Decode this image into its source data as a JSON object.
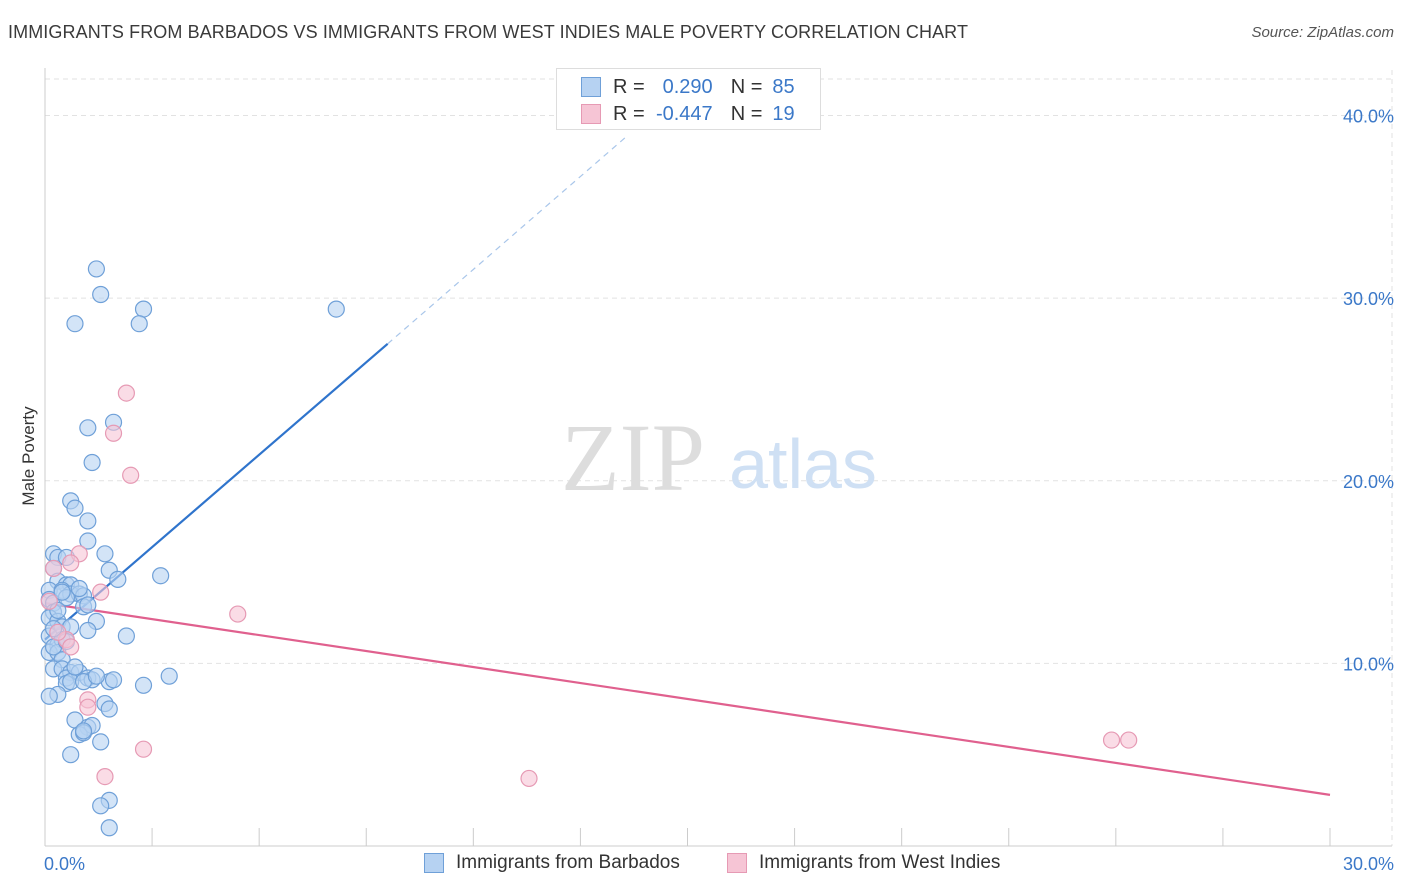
{
  "title": "IMMIGRANTS FROM BARBADOS VS IMMIGRANTS FROM WEST INDIES MALE POVERTY CORRELATION CHART",
  "source": "Source: ZipAtlas.com",
  "watermark": {
    "zip": "ZIP",
    "atlas": "atlas"
  },
  "colors": {
    "blue_fill": "#b6d2f2",
    "blue_stroke": "#6fa0d8",
    "blue_line": "#2f74cc",
    "pink_fill": "#f6c5d5",
    "pink_stroke": "#e69ab4",
    "pink_line": "#e0608e",
    "axis_text": "#3b78c8",
    "grid": "#e2e2e2"
  },
  "legend": {
    "rows": [
      {
        "r_label": "R =",
        "r_value": "0.290",
        "n_label": "N =",
        "n_value": "85"
      },
      {
        "r_label": "R =",
        "r_value": "-0.447",
        "n_label": "N =",
        "n_value": "19"
      }
    ]
  },
  "bottom_legend": {
    "series1": "Immigrants from Barbados",
    "series2": "Immigrants from West Indies"
  },
  "chart_data": {
    "type": "scatter",
    "title": "IMMIGRANTS FROM BARBADOS VS IMMIGRANTS FROM WEST INDIES MALE POVERTY CORRELATION CHART",
    "xlabel": "",
    "ylabel": "Male Poverty",
    "xlim": [
      0,
      30
    ],
    "ylim": [
      0,
      42
    ],
    "x_tick_labels": [
      {
        "value": 0,
        "label": "0.0%"
      },
      {
        "value": 30,
        "label": "30.0%"
      }
    ],
    "y_tick_labels": [
      {
        "value": 10,
        "label": "10.0%"
      },
      {
        "value": 20,
        "label": "20.0%"
      },
      {
        "value": 30,
        "label": "30.0%"
      },
      {
        "value": 40,
        "label": "40.0%"
      }
    ],
    "y_gridlines": [
      10,
      20,
      30,
      40
    ],
    "series": [
      {
        "name": "Immigrants from Barbados",
        "color": "blue",
        "points": [
          [
            1.2,
            31.6
          ],
          [
            1.3,
            30.2
          ],
          [
            2.3,
            29.4
          ],
          [
            2.2,
            28.6
          ],
          [
            0.7,
            28.6
          ],
          [
            6.8,
            29.4
          ],
          [
            1.6,
            23.2
          ],
          [
            1.0,
            22.9
          ],
          [
            1.1,
            21.0
          ],
          [
            0.6,
            18.9
          ],
          [
            0.7,
            18.5
          ],
          [
            1.0,
            17.8
          ],
          [
            1.0,
            16.7
          ],
          [
            0.2,
            16.0
          ],
          [
            0.3,
            15.8
          ],
          [
            0.5,
            15.8
          ],
          [
            1.4,
            16.0
          ],
          [
            1.5,
            15.1
          ],
          [
            0.2,
            15.2
          ],
          [
            0.3,
            14.5
          ],
          [
            0.5,
            14.3
          ],
          [
            0.6,
            14.3
          ],
          [
            1.7,
            14.6
          ],
          [
            2.7,
            14.8
          ],
          [
            0.1,
            14.0
          ],
          [
            0.4,
            14.0
          ],
          [
            0.6,
            13.8
          ],
          [
            0.8,
            13.8
          ],
          [
            0.9,
            13.7
          ],
          [
            0.1,
            13.5
          ],
          [
            0.2,
            13.3
          ],
          [
            0.5,
            13.6
          ],
          [
            0.9,
            13.1
          ],
          [
            0.2,
            12.8
          ],
          [
            0.1,
            12.5
          ],
          [
            0.3,
            12.3
          ],
          [
            0.4,
            12.0
          ],
          [
            0.6,
            12.0
          ],
          [
            1.2,
            12.3
          ],
          [
            1.0,
            11.8
          ],
          [
            0.1,
            11.5
          ],
          [
            0.3,
            11.0
          ],
          [
            0.4,
            11.3
          ],
          [
            1.9,
            11.5
          ],
          [
            0.1,
            10.6
          ],
          [
            0.3,
            10.6
          ],
          [
            0.4,
            10.2
          ],
          [
            0.2,
            9.7
          ],
          [
            0.4,
            9.7
          ],
          [
            0.6,
            9.5
          ],
          [
            0.5,
            9.2
          ],
          [
            0.8,
            9.5
          ],
          [
            1.0,
            9.2
          ],
          [
            1.1,
            9.1
          ],
          [
            0.5,
            8.9
          ],
          [
            0.6,
            9.0
          ],
          [
            0.9,
            9.0
          ],
          [
            1.5,
            9.0
          ],
          [
            1.6,
            9.1
          ],
          [
            2.9,
            9.3
          ],
          [
            0.3,
            8.3
          ],
          [
            0.1,
            8.2
          ],
          [
            2.3,
            8.8
          ],
          [
            1.4,
            7.8
          ],
          [
            1.5,
            7.5
          ],
          [
            0.7,
            6.9
          ],
          [
            1.0,
            6.5
          ],
          [
            1.1,
            6.6
          ],
          [
            0.8,
            6.1
          ],
          [
            0.9,
            6.2
          ],
          [
            1.3,
            5.7
          ],
          [
            0.6,
            5.0
          ],
          [
            1.5,
            2.5
          ],
          [
            1.3,
            2.2
          ],
          [
            1.5,
            1.0
          ],
          [
            0.7,
            9.8
          ],
          [
            0.3,
            12.9
          ],
          [
            0.2,
            11.9
          ],
          [
            1.0,
            13.2
          ],
          [
            0.8,
            14.1
          ],
          [
            0.4,
            13.9
          ],
          [
            0.2,
            10.9
          ],
          [
            0.5,
            11.2
          ],
          [
            1.2,
            9.3
          ],
          [
            0.9,
            6.3
          ]
        ]
      },
      {
        "name": "Immigrants from West Indies",
        "color": "pink",
        "points": [
          [
            1.9,
            24.8
          ],
          [
            1.6,
            22.6
          ],
          [
            2.0,
            20.3
          ],
          [
            0.8,
            16.0
          ],
          [
            0.6,
            15.5
          ],
          [
            0.2,
            15.2
          ],
          [
            1.3,
            13.9
          ],
          [
            0.1,
            13.4
          ],
          [
            4.5,
            12.7
          ],
          [
            0.5,
            11.3
          ],
          [
            0.6,
            10.9
          ],
          [
            1.0,
            8.0
          ],
          [
            1.0,
            7.6
          ],
          [
            2.3,
            5.3
          ],
          [
            1.4,
            3.8
          ],
          [
            11.3,
            3.7
          ],
          [
            24.9,
            5.8
          ],
          [
            25.3,
            5.8
          ],
          [
            0.3,
            11.7
          ]
        ]
      }
    ],
    "trend_lines": [
      {
        "series": "Immigrants from Barbados",
        "x_start": 0,
        "y_start": 11.3,
        "x_end": 8.0,
        "y_end": 27.5,
        "dashed_to_x": 13.6,
        "dashed_to_y": 38.9
      },
      {
        "series": "Immigrants from West Indies",
        "x_start": 0,
        "y_start": 13.3,
        "x_end": 30.0,
        "y_end": 2.8
      }
    ],
    "legend_placement": "top-center"
  }
}
